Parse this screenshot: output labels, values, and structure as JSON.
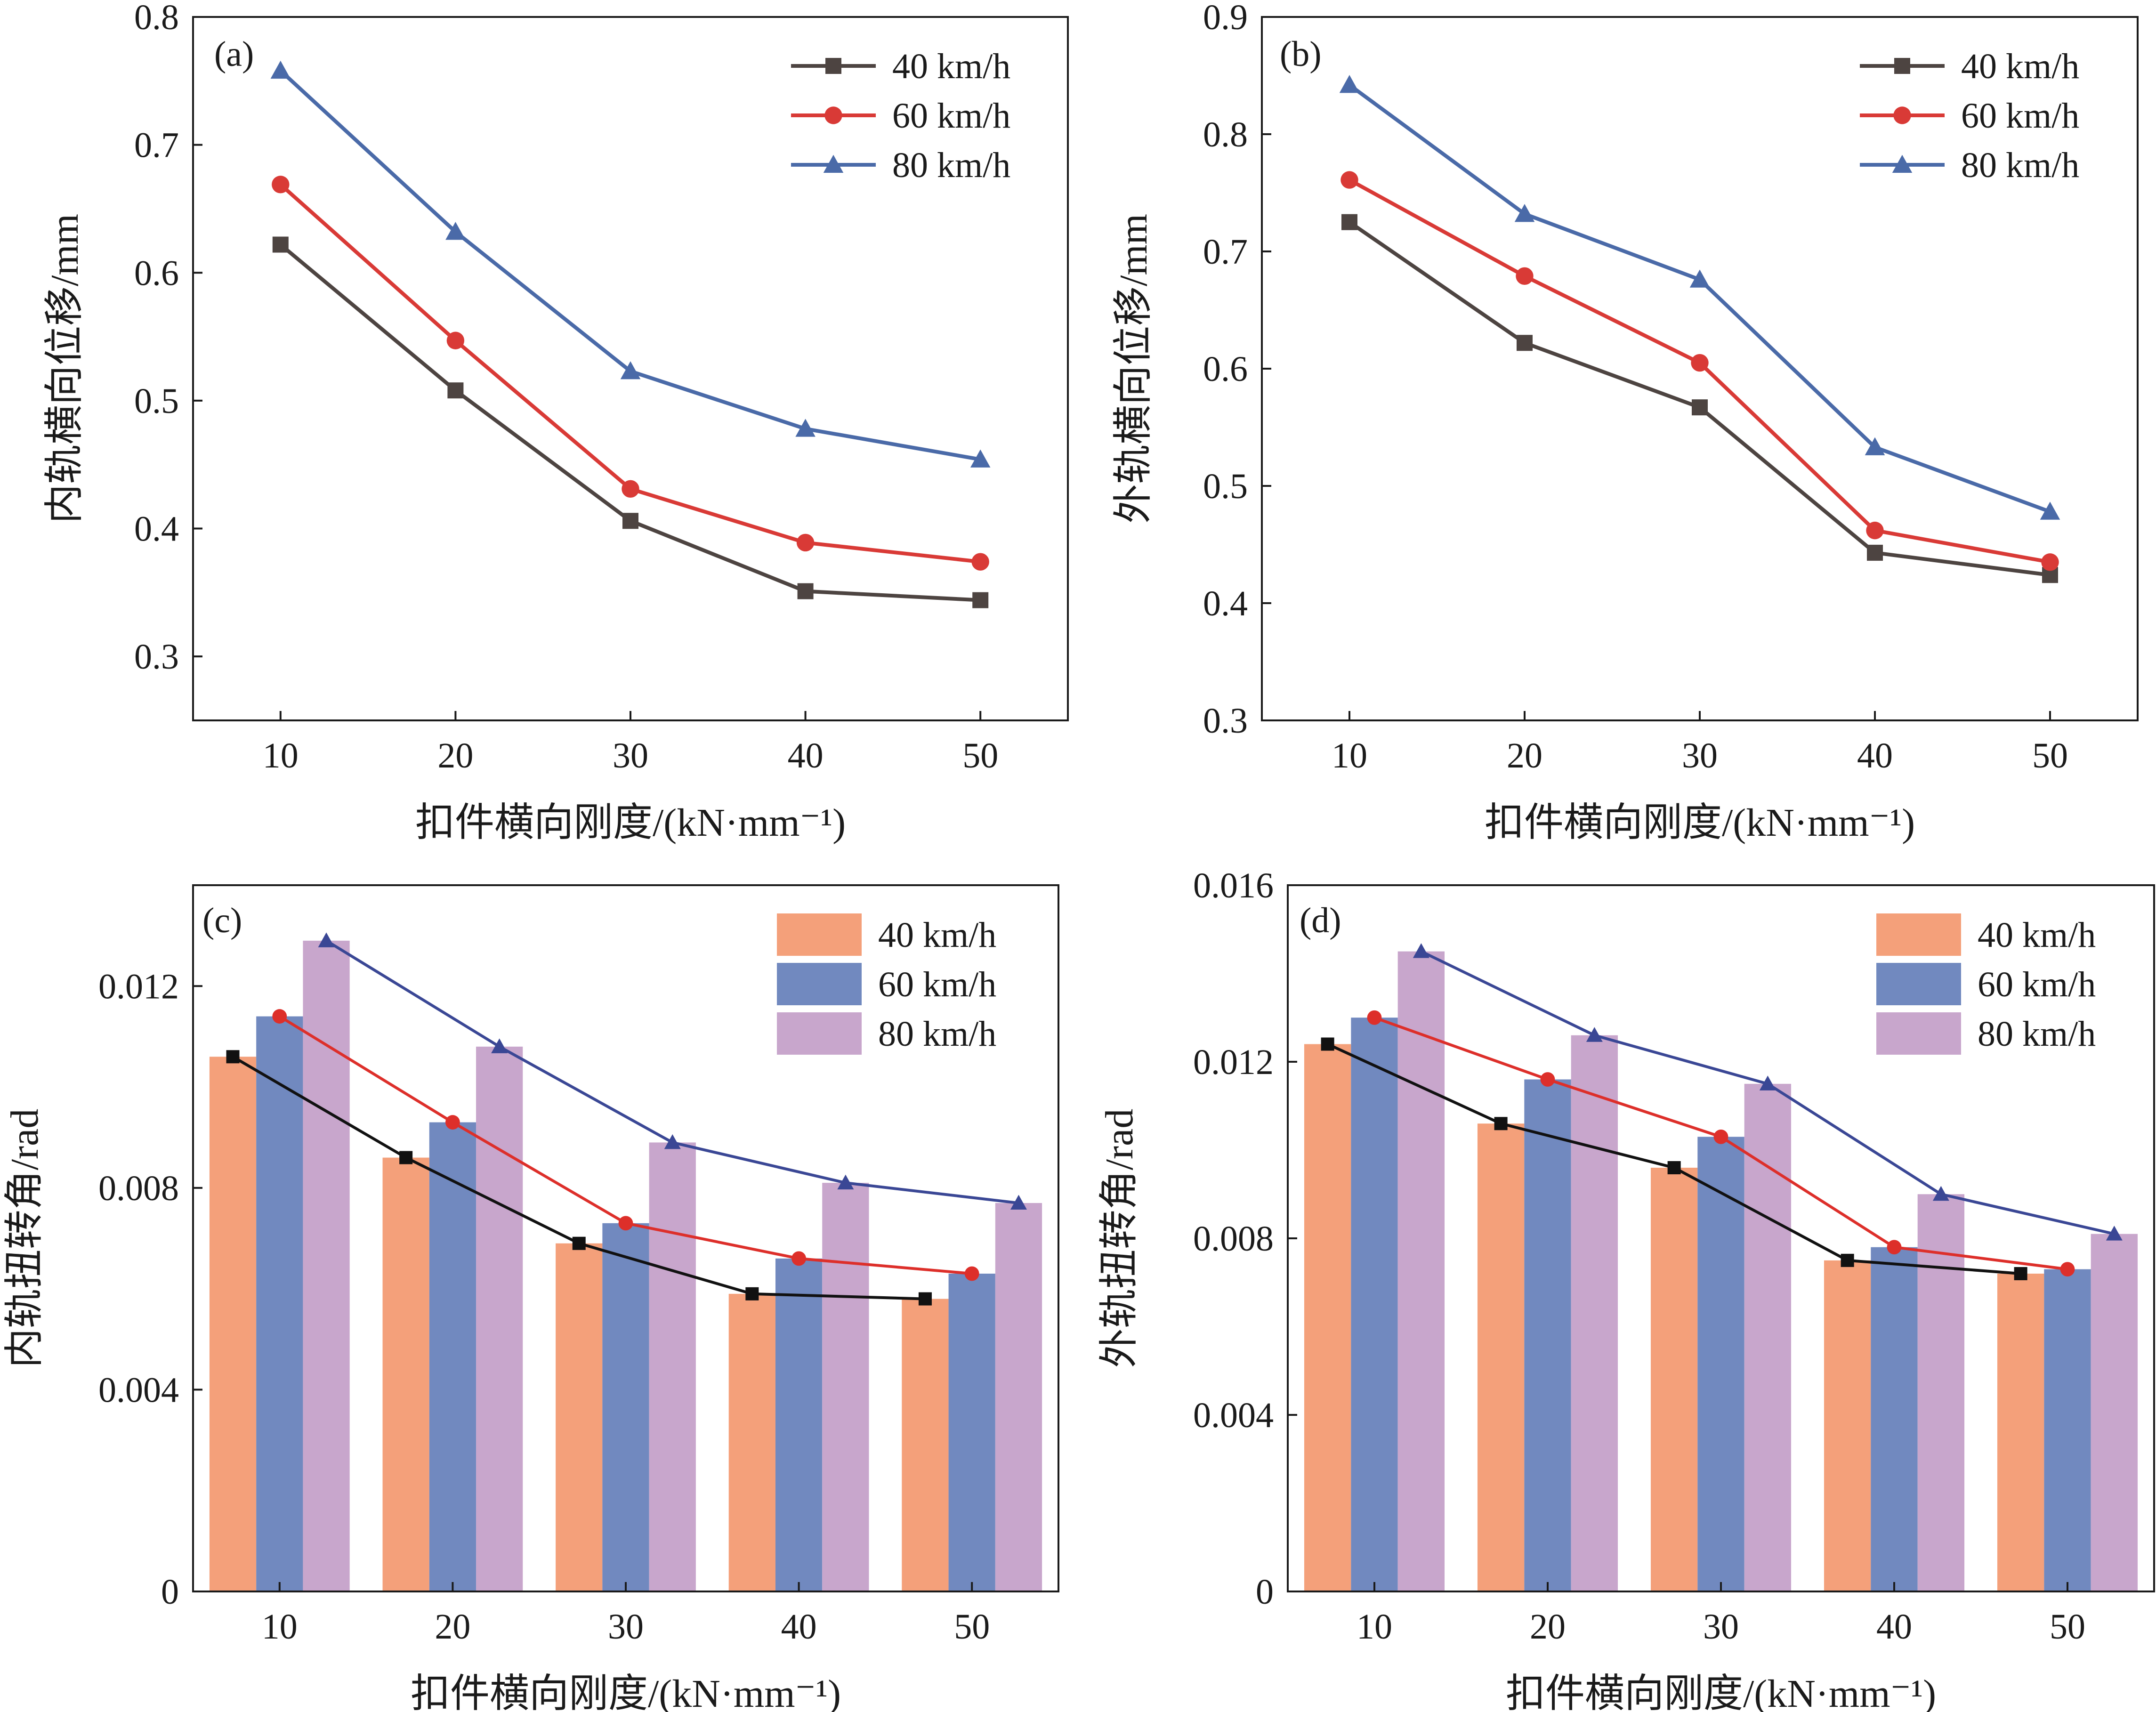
{
  "colors": {
    "s40_line": "#4d4441",
    "s60_line": "#d93a36",
    "s80_line": "#4a6aa8",
    "bar40": "#f4a07a",
    "bar60": "#7189bf",
    "bar80": "#c8a6cc",
    "d40_line": "#111111",
    "d60_line": "#dd2f2a",
    "d80_line": "#3a4795"
  },
  "chart_data": [
    {
      "id": "a",
      "type": "line",
      "panel_label": "(a)",
      "title": "",
      "xlabel": "扣件横向刚度/(kN·mm⁻¹)",
      "ylabel": "内轨横向位移/mm",
      "x": [
        10,
        20,
        30,
        40,
        50
      ],
      "xticks": [
        "10",
        "20",
        "30",
        "40",
        "50"
      ],
      "ylim": [
        0.25,
        0.8
      ],
      "yticks": [
        "0.3",
        "0.4",
        "0.5",
        "0.6",
        "0.7",
        "0.8"
      ],
      "legend_position": "top-right",
      "series": [
        {
          "name": "40 km/h",
          "marker": "square",
          "values": [
            0.622,
            0.508,
            0.406,
            0.351,
            0.344
          ]
        },
        {
          "name": "60 km/h",
          "marker": "circle",
          "values": [
            0.669,
            0.547,
            0.431,
            0.389,
            0.374
          ]
        },
        {
          "name": "80 km/h",
          "marker": "triangle",
          "values": [
            0.758,
            0.632,
            0.523,
            0.478,
            0.454
          ]
        }
      ]
    },
    {
      "id": "b",
      "type": "line",
      "panel_label": "(b)",
      "title": "",
      "xlabel": "扣件横向刚度/(kN·mm⁻¹)",
      "ylabel": "外轨横向位移/mm",
      "x": [
        10,
        20,
        30,
        40,
        50
      ],
      "xticks": [
        "10",
        "20",
        "30",
        "40",
        "50"
      ],
      "ylim": [
        0.3,
        0.9
      ],
      "yticks": [
        "0.3",
        "0.4",
        "0.5",
        "0.6",
        "0.7",
        "0.8",
        "0.9"
      ],
      "legend_position": "top-right",
      "series": [
        {
          "name": "40 km/h",
          "marker": "square",
          "values": [
            0.725,
            0.622,
            0.567,
            0.443,
            0.424
          ]
        },
        {
          "name": "60 km/h",
          "marker": "circle",
          "values": [
            0.761,
            0.679,
            0.605,
            0.462,
            0.435
          ]
        },
        {
          "name": "80 km/h",
          "marker": "triangle",
          "values": [
            0.842,
            0.732,
            0.676,
            0.533,
            0.478
          ]
        }
      ]
    },
    {
      "id": "c",
      "type": "bar",
      "panel_label": "(c)",
      "title": "",
      "xlabel": "扣件横向刚度/(kN·mm⁻¹)",
      "ylabel": "内轨扭转角/rad",
      "categories": [
        "10",
        "20",
        "30",
        "40",
        "50"
      ],
      "ylim": [
        0,
        0.014
      ],
      "yticks": [
        "0",
        "0.004",
        "0.008",
        "0.012"
      ],
      "legend_position": "top-right",
      "series": [
        {
          "name": "40 km/h",
          "values": [
            0.0106,
            0.0086,
            0.0069,
            0.0059,
            0.0058
          ]
        },
        {
          "name": "60 km/h",
          "values": [
            0.0114,
            0.0093,
            0.0073,
            0.0066,
            0.0063
          ]
        },
        {
          "name": "80 km/h",
          "values": [
            0.0129,
            0.0108,
            0.0089,
            0.0081,
            0.0077
          ]
        }
      ]
    },
    {
      "id": "d",
      "type": "bar",
      "panel_label": "(d)",
      "title": "",
      "xlabel": "扣件横向刚度/(kN·mm⁻¹)",
      "ylabel": "外轨扭转角/rad",
      "categories": [
        "10",
        "20",
        "30",
        "40",
        "50"
      ],
      "ylim": [
        0,
        0.016
      ],
      "yticks": [
        "0",
        "0.004",
        "0.008",
        "0.012",
        "0.016"
      ],
      "legend_position": "top-right",
      "series": [
        {
          "name": "40 km/h",
          "values": [
            0.0124,
            0.0106,
            0.0096,
            0.0075,
            0.0072
          ]
        },
        {
          "name": "60 km/h",
          "values": [
            0.013,
            0.0116,
            0.0103,
            0.0078,
            0.0073
          ]
        },
        {
          "name": "80 km/h",
          "values": [
            0.0145,
            0.0126,
            0.0115,
            0.009,
            0.0081
          ]
        }
      ]
    }
  ]
}
